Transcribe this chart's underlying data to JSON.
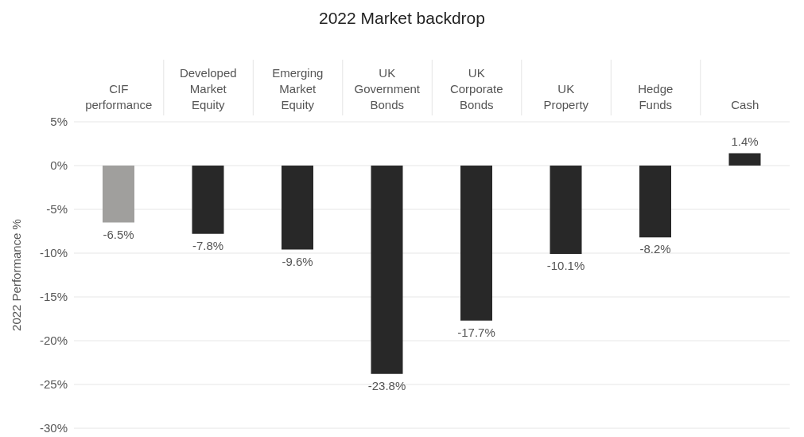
{
  "chart_data": {
    "type": "bar",
    "title": "2022 Market backdrop",
    "ylabel": "2022 Performance %",
    "categories": [
      "CIF performance",
      "Developed Market Equity",
      "Emerging Market Equity",
      "UK Government Bonds",
      "UK Corporate Bonds",
      "UK Property",
      "Hedge Funds",
      "Cash"
    ],
    "values": [
      -6.5,
      -7.8,
      -9.6,
      -23.8,
      -17.7,
      -10.1,
      -8.2,
      1.4
    ],
    "value_labels": [
      "-6.5%",
      "-7.8%",
      "-9.6%",
      "-23.8%",
      "-17.7%",
      "-10.1%",
      "-8.2%",
      "1.4%"
    ],
    "colors": [
      "#a09f9d",
      "#282828",
      "#282828",
      "#282828",
      "#282828",
      "#282828",
      "#282828",
      "#282828"
    ],
    "ylim": [
      -30,
      5
    ],
    "yticks": [
      {
        "value": 5,
        "label": "5%"
      },
      {
        "value": 0,
        "label": "0%"
      },
      {
        "value": -5,
        "label": "-5%"
      },
      {
        "value": -10,
        "label": "-10%"
      },
      {
        "value": -15,
        "label": "-15%"
      },
      {
        "value": -20,
        "label": "-20%"
      },
      {
        "value": -25,
        "label": "-25%"
      },
      {
        "value": -30,
        "label": "-30%"
      }
    ],
    "grid": "y"
  }
}
